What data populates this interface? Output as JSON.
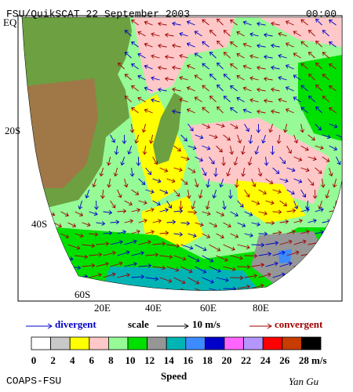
{
  "header": {
    "title": "FSU/QuikSCAT 22 September 2003",
    "time": "00:00"
  },
  "map": {
    "lat_labels": [
      "EQ",
      "20S",
      "40S",
      "60S"
    ],
    "lon_labels": [
      "20E",
      "40E",
      "60E",
      "80E"
    ]
  },
  "legend": {
    "divergent": "divergent",
    "scale": "scale",
    "scale_value": "10 m/s",
    "convergent": "convergent"
  },
  "colorbar": {
    "labels": [
      0,
      2,
      4,
      6,
      8,
      10,
      12,
      14,
      16,
      18,
      20,
      22,
      24,
      26,
      28
    ],
    "unit": "m/s",
    "title": "Speed",
    "colors": [
      "#ffffff",
      "#c8c8c8",
      "#ffff00",
      "#ffc8c8",
      "#96fa96",
      "#00e000",
      "#969696",
      "#00b4b4",
      "#3c8cff",
      "#0000c8",
      "#ff64ff",
      "#b496ff",
      "#ff0000",
      "#c83c00",
      "#000000"
    ]
  },
  "footer": {
    "left": "COAPS-FSU",
    "right": "Yan Gu"
  }
}
